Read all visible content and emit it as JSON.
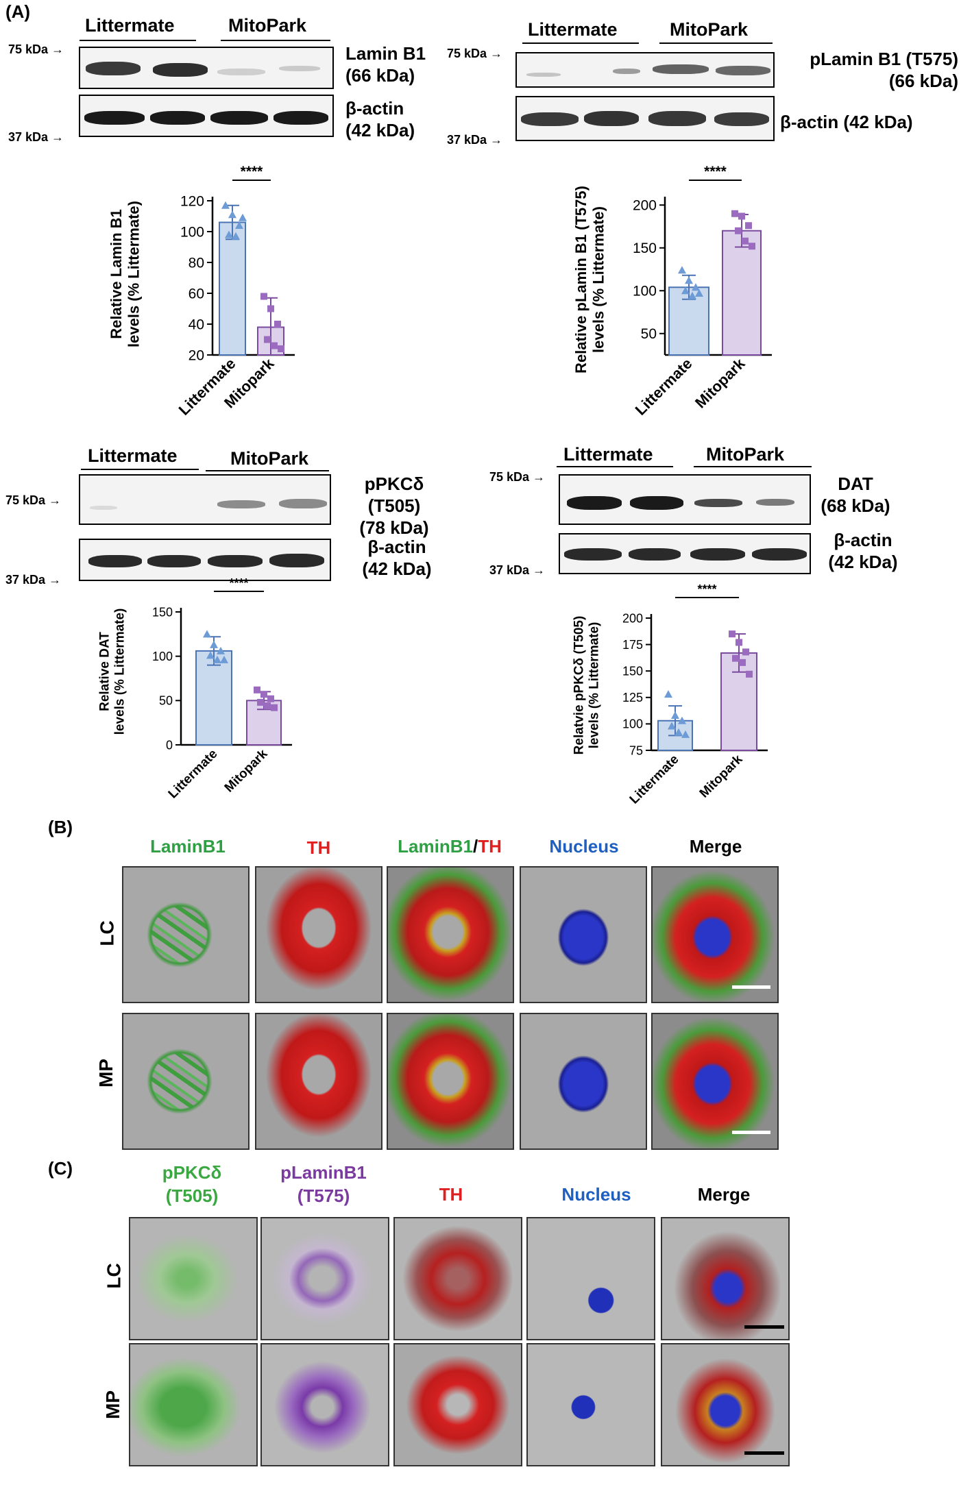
{
  "panel_labels": {
    "a": "(A)",
    "b": "(B)",
    "c": "(C)"
  },
  "blots": {
    "lamin": {
      "group1": "Littermate",
      "group2": "MitoPark",
      "target": "Lamin B1",
      "target_kda": "(66 kDa)",
      "control": "β-actin",
      "control_kda": "(42 kDa)",
      "marker_top": "75 kDa",
      "marker_bottom": "37 kDa"
    },
    "plamin": {
      "group1": "Littermate",
      "group2": "MitoPark",
      "target": "pLamin B1 (T575)",
      "target_kda": "(66 kDa)",
      "control": "β-actin (42 kDa)",
      "marker_top": "75 kDa",
      "marker_bottom": "37 kDa"
    },
    "ppkcd": {
      "group1": "Littermate",
      "group2": "MitoPark",
      "target": "pPKCδ (T505)",
      "target_kda": "(78 kDa)",
      "control": "β-actin",
      "control_kda": "(42 kDa)",
      "marker_top": "75 kDa",
      "marker_bottom": "37 kDa"
    },
    "dat": {
      "group1": "Littermate",
      "group2": "MitoPark",
      "target": "DAT",
      "target_kda": "(68 kDa)",
      "control": "β-actin",
      "control_kda": "(42 kDa)",
      "marker_top": "75 kDa",
      "marker_bottom": "37 kDa"
    }
  },
  "chart_data": [
    {
      "id": "lamin",
      "type": "bar",
      "categories": [
        "Littermate",
        "Mitopark"
      ],
      "values": [
        106,
        38
      ],
      "errors": [
        11,
        19
      ],
      "points": [
        [
          117,
          111,
          104,
          98,
          97,
          109
        ],
        [
          58,
          50,
          40,
          30,
          26,
          24
        ]
      ],
      "ylabel": "Relative Lamin B1 levels (% Littermate)",
      "ylim": [
        20,
        120
      ],
      "yticks": [
        20,
        40,
        60,
        80,
        100,
        120
      ],
      "significance": "****"
    },
    {
      "id": "plamin",
      "type": "bar",
      "categories": [
        "Littermate",
        "Mitopark"
      ],
      "values": [
        104,
        170
      ],
      "errors": [
        14,
        19
      ],
      "points": [
        [
          124,
          112,
          104,
          100,
          94,
          97
        ],
        [
          190,
          187,
          176,
          170,
          158,
          152
        ]
      ],
      "ylabel": "Relative pLamin B1 (T575) levels (% Littermate)",
      "ylim": [
        25,
        205
      ],
      "yticks": [
        50,
        100,
        150,
        200
      ],
      "significance": "****"
    },
    {
      "id": "dat",
      "type": "bar",
      "categories": [
        "Littermate",
        "Mitopark"
      ],
      "values": [
        106,
        50
      ],
      "errors": [
        16,
        10
      ],
      "points": [
        [
          125,
          113,
          106,
          101,
          96,
          96
        ],
        [
          62,
          57,
          52,
          48,
          44,
          42
        ]
      ],
      "ylabel": "Relative DAT levels (% Littermate)",
      "ylim": [
        0,
        150
      ],
      "yticks": [
        0,
        50,
        100,
        150
      ],
      "significance": "****"
    },
    {
      "id": "ppkcd",
      "type": "bar",
      "categories": [
        "Littermate",
        "Mitopark"
      ],
      "values": [
        103,
        167
      ],
      "errors": [
        14,
        18
      ],
      "points": [
        [
          128,
          108,
          103,
          98,
          92,
          90
        ],
        [
          185,
          177,
          168,
          162,
          158,
          147
        ]
      ],
      "ylabel": "Relatvie pPKCδ (T505) levels (% Littermate)",
      "ylim": [
        75,
        200
      ],
      "yticks": [
        75,
        100,
        125,
        150,
        175,
        200
      ],
      "significance": "****"
    }
  ],
  "panel_b": {
    "columns": [
      {
        "text": "LaminB1",
        "color": "#2ea043"
      },
      {
        "text": "TH",
        "color": "#e02020"
      },
      {
        "text_a": "LaminB1",
        "sep": "/",
        "text_b": "TH"
      },
      {
        "text": "Nucleus",
        "color": "#1f5fc0"
      },
      {
        "text": "Merge",
        "color": "#000000"
      }
    ],
    "rows": [
      "LC",
      "MP"
    ]
  },
  "panel_c": {
    "columns": [
      {
        "line1": "pPKCδ",
        "line2": "(T505)",
        "color": "#3aa840"
      },
      {
        "line1": "pLaminB1",
        "line2": "(T575)",
        "color": "#7b3aa0"
      },
      {
        "line1": "TH",
        "line2": "",
        "color": "#e02020"
      },
      {
        "line1": "Nucleus",
        "line2": "",
        "color": "#1f5fc0"
      },
      {
        "line1": "Merge",
        "line2": "",
        "color": "#000000"
      }
    ],
    "rows": [
      "LC",
      "MP"
    ]
  },
  "colors": {
    "littermate_fill": "#c9d9ee",
    "littermate_edge": "#4a74b4",
    "littermate_point": "#6d9bd6",
    "mitopark_fill": "#ddd0ea",
    "mitopark_edge": "#7a4a9e",
    "mitopark_point": "#9a6bbf"
  }
}
